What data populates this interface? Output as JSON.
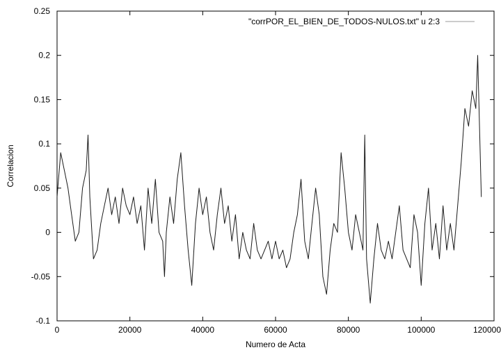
{
  "chart_data": {
    "type": "line",
    "title": "",
    "xlabel": "Numero de Acta",
    "ylabel": "Correlacion",
    "xlim": [
      0,
      120000
    ],
    "ylim": [
      -0.1,
      0.25
    ],
    "x_ticks": [
      0,
      20000,
      40000,
      60000,
      80000,
      100000,
      120000
    ],
    "x_tick_labels": [
      "0",
      "20000",
      "40000",
      "60000",
      "80000",
      "100000",
      "120000"
    ],
    "y_ticks": [
      -0.1,
      -0.05,
      0,
      0.05,
      0.1,
      0.15,
      0.2,
      0.25
    ],
    "y_tick_labels": [
      "-0.1",
      "-0.05",
      "0",
      "0.05",
      "0.1",
      "0.15",
      "0.2",
      "0.25"
    ],
    "grid": false,
    "legend_position": "top-right",
    "series": [
      {
        "name": "\"corrPOR_EL_BIEN_DE_TODOS-NULOS.txt\" u 2:3",
        "color": "#999999",
        "x": [
          0,
          1000,
          2000,
          3000,
          4000,
          5000,
          6000,
          7000,
          8000,
          8500,
          9000,
          10000,
          11000,
          12000,
          13000,
          14000,
          15000,
          16000,
          17000,
          18000,
          19000,
          20000,
          21000,
          22000,
          23000,
          24000,
          25000,
          26000,
          27000,
          28000,
          29000,
          29500,
          30000,
          31000,
          32000,
          33000,
          34000,
          35000,
          36000,
          37000,
          38000,
          39000,
          40000,
          41000,
          42000,
          43000,
          44000,
          45000,
          46000,
          47000,
          48000,
          49000,
          50000,
          51000,
          52000,
          53000,
          54000,
          55000,
          56000,
          57000,
          58000,
          59000,
          60000,
          61000,
          62000,
          63000,
          64000,
          65000,
          66000,
          67000,
          68000,
          69000,
          70000,
          71000,
          72000,
          73000,
          74000,
          75000,
          76000,
          77000,
          78000,
          79000,
          80000,
          81000,
          82000,
          83000,
          84000,
          84500,
          85000,
          86000,
          87000,
          88000,
          89000,
          90000,
          91000,
          92000,
          93000,
          94000,
          95000,
          96000,
          97000,
          98000,
          99000,
          100000,
          101000,
          102000,
          103000,
          104000,
          105000,
          106000,
          107000,
          108000,
          109000,
          110000,
          111000,
          112000,
          113000,
          114000,
          115000,
          115500,
          116000,
          116500
        ],
        "y": [
          0.04,
          0.09,
          0.07,
          0.05,
          0.02,
          -0.01,
          0.0,
          0.05,
          0.07,
          0.11,
          0.04,
          -0.03,
          -0.02,
          0.01,
          0.03,
          0.05,
          0.02,
          0.04,
          0.01,
          0.05,
          0.03,
          0.02,
          0.04,
          0.01,
          0.03,
          -0.02,
          0.05,
          0.01,
          0.06,
          0.0,
          -0.01,
          -0.05,
          0.0,
          0.04,
          0.01,
          0.06,
          0.09,
          0.03,
          -0.02,
          -0.06,
          0.01,
          0.05,
          0.02,
          0.04,
          0.0,
          -0.02,
          0.02,
          0.05,
          0.01,
          0.03,
          -0.01,
          0.02,
          -0.03,
          0.0,
          -0.02,
          -0.03,
          0.01,
          -0.02,
          -0.03,
          -0.02,
          -0.01,
          -0.03,
          -0.01,
          -0.03,
          -0.02,
          -0.04,
          -0.03,
          0.0,
          0.02,
          0.06,
          -0.01,
          -0.03,
          0.01,
          0.05,
          0.02,
          -0.05,
          -0.07,
          -0.02,
          0.01,
          0.0,
          0.09,
          0.05,
          0.0,
          -0.02,
          0.02,
          0.0,
          -0.02,
          0.11,
          -0.03,
          -0.08,
          -0.03,
          0.01,
          -0.02,
          -0.03,
          -0.01,
          -0.03,
          0.0,
          0.03,
          -0.02,
          -0.03,
          -0.04,
          0.02,
          0.0,
          -0.06,
          0.01,
          0.05,
          -0.02,
          0.01,
          -0.03,
          0.03,
          -0.02,
          0.01,
          -0.02,
          0.03,
          0.08,
          0.14,
          0.12,
          0.16,
          0.14,
          0.2,
          0.12,
          0.04
        ]
      }
    ]
  }
}
